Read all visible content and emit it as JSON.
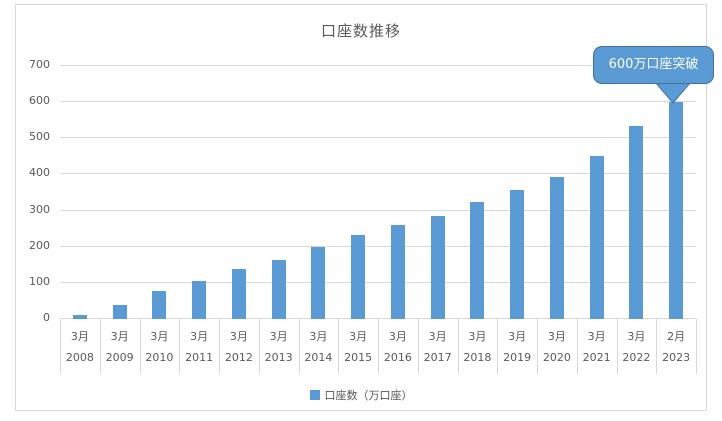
{
  "chart_data": {
    "type": "bar",
    "title": "口座数推移",
    "series_name": "口座数（万口座）",
    "categories": [
      {
        "month": "3月",
        "year": "2008"
      },
      {
        "month": "3月",
        "year": "2009"
      },
      {
        "month": "3月",
        "year": "2010"
      },
      {
        "month": "3月",
        "year": "2011"
      },
      {
        "month": "3月",
        "year": "2012"
      },
      {
        "month": "3月",
        "year": "2013"
      },
      {
        "month": "3月",
        "year": "2014"
      },
      {
        "month": "3月",
        "year": "2015"
      },
      {
        "month": "3月",
        "year": "2016"
      },
      {
        "month": "3月",
        "year": "2017"
      },
      {
        "month": "3月",
        "year": "2018"
      },
      {
        "month": "3月",
        "year": "2019"
      },
      {
        "month": "3月",
        "year": "2020"
      },
      {
        "month": "3月",
        "year": "2021"
      },
      {
        "month": "3月",
        "year": "2022"
      },
      {
        "month": "2月",
        "year": "2023"
      }
    ],
    "values": [
      12,
      40,
      78,
      104,
      137,
      164,
      199,
      232,
      260,
      286,
      324,
      358,
      394,
      452,
      535,
      600
    ],
    "ylim": [
      0,
      700
    ],
    "yticks": [
      0,
      100,
      200,
      300,
      400,
      500,
      600,
      700
    ],
    "grid": true,
    "legend_position": "bottom",
    "annotation": {
      "text": "600万口座突破",
      "target_category_index": 15,
      "target_value": 600
    },
    "colors": {
      "bar": "#5b9bd5",
      "callout_fill": "#5b9bd5",
      "callout_border": "#41719c",
      "callout_text": "#ffffff",
      "axis_text": "#595959",
      "gridline": "#d9d9d9"
    }
  }
}
